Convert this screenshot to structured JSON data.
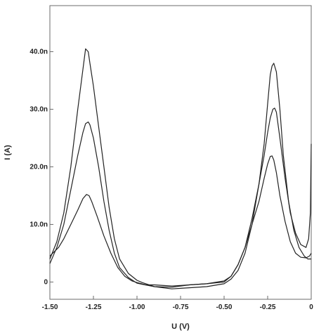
{
  "chart_data": {
    "type": "line",
    "title": "",
    "xlabel": "U (V)",
    "ylabel": "I (A)",
    "xlim": [
      -1.5,
      0
    ],
    "ylim": [
      -3,
      48
    ],
    "x_ticks": [
      -1.5,
      -1.25,
      -1.0,
      -0.75,
      -0.5,
      -0.25,
      0
    ],
    "x_tick_labels": [
      "-1.50",
      "-1.25",
      "-1.00",
      "-0.75",
      "-0.50",
      "-0.25",
      "0"
    ],
    "y_ticks": [
      0,
      10,
      20,
      30,
      40
    ],
    "y_tick_labels": [
      "0",
      "10.0n",
      "20.0n",
      "30.0n",
      "40.0n"
    ],
    "y_unit": "nA",
    "grid": false,
    "legend": "none",
    "line_color": "#222222",
    "series": [
      {
        "x": [
          -1.5,
          -1.46,
          -1.42,
          -1.38,
          -1.34,
          -1.31,
          -1.295,
          -1.28,
          -1.27,
          -1.25,
          -1.22,
          -1.19,
          -1.16,
          -1.13,
          -1.1,
          -1.05,
          -1.0,
          -0.97,
          -0.9,
          -0.8,
          -0.75,
          -0.7,
          -0.6,
          -0.5,
          -0.46,
          -0.42,
          -0.38,
          -0.34,
          -0.3,
          -0.27,
          -0.25,
          -0.235,
          -0.225,
          -0.215,
          -0.2,
          -0.18,
          -0.16,
          -0.13,
          -0.1,
          -0.07,
          -0.04,
          -0.02,
          -0.005,
          0
        ],
        "y": [
          4,
          7,
          12,
          20,
          30,
          37,
          40.5,
          40,
          38,
          34,
          27,
          20,
          13,
          7.5,
          4,
          1.5,
          0.3,
          -0.1,
          -0.8,
          -1.2,
          -1.1,
          -1.0,
          -0.8,
          -0.3,
          0.5,
          2,
          5,
          10,
          17,
          24,
          31,
          36,
          37.5,
          38,
          36.5,
          30,
          22,
          14,
          9,
          6,
          4.5,
          4,
          4,
          4
        ]
      },
      {
        "x": [
          -1.5,
          -1.46,
          -1.42,
          -1.38,
          -1.34,
          -1.31,
          -1.295,
          -1.28,
          -1.27,
          -1.25,
          -1.22,
          -1.19,
          -1.16,
          -1.13,
          -1.1,
          -1.05,
          -1.0,
          -0.97,
          -0.9,
          -0.8,
          -0.75,
          -0.7,
          -0.6,
          -0.5,
          -0.46,
          -0.42,
          -0.38,
          -0.34,
          -0.3,
          -0.27,
          -0.25,
          -0.235,
          -0.22,
          -0.21,
          -0.2,
          -0.18,
          -0.15,
          -0.12,
          -0.09,
          -0.06,
          -0.03,
          -0.015,
          -0.005,
          0
        ],
        "y": [
          3.2,
          6,
          10,
          16,
          22,
          26,
          27.5,
          27.8,
          27.3,
          25,
          20,
          14,
          9,
          5,
          2.5,
          0.8,
          -0.2,
          -0.4,
          -0.8,
          -0.9,
          -0.7,
          -0.5,
          -0.3,
          0.2,
          1,
          3,
          6,
          11,
          17,
          22,
          26,
          28.5,
          30,
          30.2,
          29.5,
          25,
          18,
          12,
          8.5,
          6.5,
          6,
          7.5,
          12,
          24
        ]
      },
      {
        "x": [
          -1.5,
          -1.45,
          -1.42,
          -1.38,
          -1.34,
          -1.31,
          -1.29,
          -1.275,
          -1.26,
          -1.23,
          -1.19,
          -1.15,
          -1.11,
          -1.07,
          -1.03,
          -1.0,
          -0.95,
          -0.9,
          -0.8,
          -0.75,
          -0.7,
          -0.6,
          -0.5,
          -0.46,
          -0.42,
          -0.38,
          -0.34,
          -0.3,
          -0.27,
          -0.25,
          -0.235,
          -0.225,
          -0.215,
          -0.2,
          -0.18,
          -0.15,
          -0.12,
          -0.09,
          -0.06,
          -0.03,
          -0.01,
          0
        ],
        "y": [
          4.5,
          6,
          7.5,
          10,
          12.5,
          14.5,
          15.2,
          15,
          14,
          11.5,
          8,
          5,
          2.5,
          1,
          0.2,
          -0.1,
          -0.5,
          -0.5,
          -0.7,
          -0.6,
          -0.5,
          -0.3,
          0,
          1,
          3,
          6,
          10,
          14,
          18,
          20.5,
          21.8,
          21.9,
          21.2,
          19,
          15,
          10.5,
          7,
          5,
          4.3,
          4.2,
          4.5,
          5
        ]
      }
    ]
  }
}
